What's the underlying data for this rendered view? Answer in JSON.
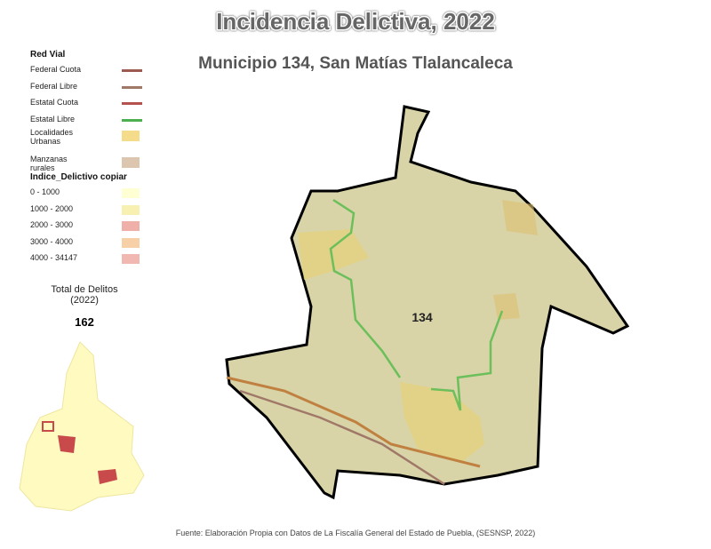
{
  "header": {
    "title": "Incidencia Delictiva, 2022",
    "subtitle": "Municipio 134, San Matías Tlalancaleca"
  },
  "legend": {
    "road_title": "Red Vial",
    "roads": [
      {
        "label": "Federal Cuota",
        "color": "#9c5a50"
      },
      {
        "label": "Federal Libre",
        "color": "#a07868"
      },
      {
        "label": "Estatal Cuota",
        "color": "#b5524e"
      },
      {
        "label": "Estatal Libre",
        "color": "#4caf50"
      }
    ],
    "areas": [
      {
        "label": "Localidades Urbanas",
        "color": "#f5dc8a"
      },
      {
        "label": "Manzanas rurales",
        "color": "#dcc6b0"
      }
    ],
    "index_title": "Indice_Delictivo copiar",
    "ranges": [
      {
        "label": "0 - 1000",
        "color": "#ffffd4"
      },
      {
        "label": "1000 - 2000",
        "color": "#f7f0b0"
      },
      {
        "label": "2000 - 3000",
        "color": "#f0b0aa"
      },
      {
        "label": "3000 - 4000",
        "color": "#f8d0a8"
      },
      {
        "label": "4000 - 34147",
        "color": "#f0b8b0"
      }
    ]
  },
  "total": {
    "label": "Total de Delitos (2022)",
    "value": 162
  },
  "map_label": "134",
  "source": "Fuente: Elaboración Propia con Datos de La Fiscalía General del Estado de Puebla, (SESNSP, 2022)"
}
